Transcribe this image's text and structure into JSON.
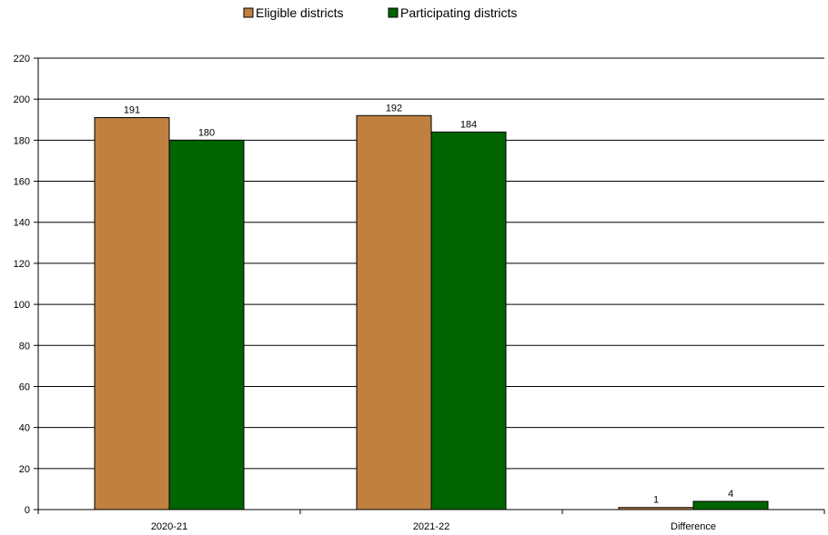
{
  "chart_data": {
    "type": "bar",
    "categories": [
      "2020-21",
      "2021-22",
      "Difference"
    ],
    "series": [
      {
        "name": "Eligible districts",
        "values": [
          191,
          192,
          1
        ],
        "color": "#C0803F"
      },
      {
        "name": "Participating districts",
        "values": [
          180,
          184,
          4
        ],
        "color": "#006400"
      }
    ],
    "ylim": [
      0,
      220
    ],
    "yticks": [
      0,
      20,
      40,
      60,
      80,
      100,
      120,
      140,
      160,
      180,
      200,
      220
    ],
    "grid": true,
    "legend_position": "top",
    "data_labels": true
  }
}
